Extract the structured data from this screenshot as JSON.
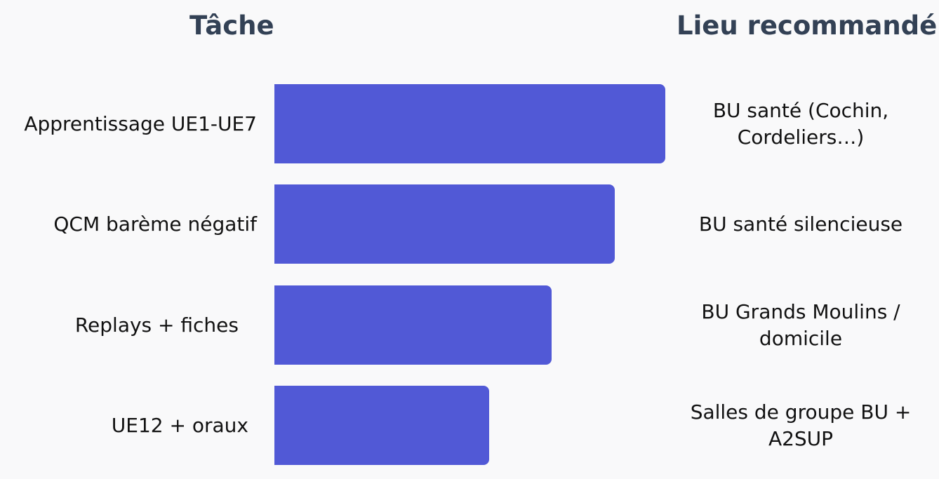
{
  "headers": {
    "task": "Tâche",
    "place": "Lieu recommandé"
  },
  "rows": [
    {
      "task": "Apprentissage UE1-UE7",
      "place": "BU santé (Cochin,\n  Cordeliers…)",
      "relative_length": 1.0,
      "color": "#5159d6"
    },
    {
      "task": "QCM barème négatif",
      "place": "BU santé silencieuse",
      "relative_length": 0.87,
      "color": "#5159d6"
    },
    {
      "task": "Replays + fiches",
      "place": "BU Grands Moulins /\ndomicile",
      "relative_length": 0.71,
      "color": "#5159d6"
    },
    {
      "task": "UE12 + oraux",
      "place": "Salles de groupe BU +\nA2SUP",
      "relative_length": 0.55,
      "color": "#5159d6"
    }
  ]
}
